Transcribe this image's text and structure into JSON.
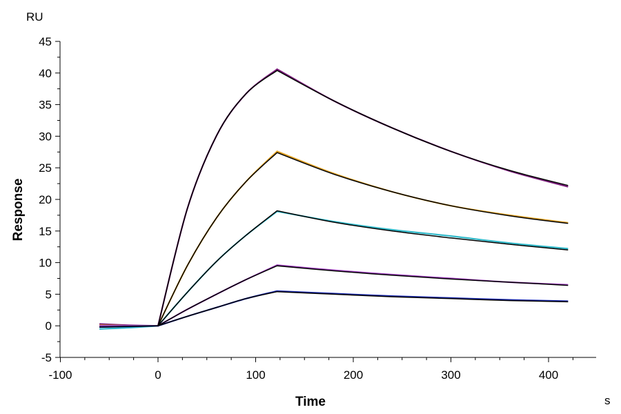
{
  "chart_data": {
    "type": "line",
    "xlabel": "Time",
    "ylabel": "Response",
    "x_unit": "s",
    "y_unit": "RU",
    "xlim": [
      -100,
      450
    ],
    "ylim": [
      -5,
      45
    ],
    "x_ticks": [
      -100,
      0,
      100,
      200,
      300,
      400
    ],
    "y_ticks": [
      -5,
      0,
      5,
      10,
      15,
      20,
      25,
      30,
      35,
      40,
      45
    ],
    "grid": false,
    "series": [
      {
        "color": "#7a1a7a",
        "x": [
          -60,
          -30,
          0,
          30,
          60,
          90,
          122,
          180,
          240,
          300,
          360,
          420
        ],
        "y": [
          0.3,
          0.1,
          0,
          18.5,
          30.1,
          36.7,
          40.6,
          35.6,
          31.3,
          27.6,
          24.5,
          22.0
        ]
      },
      {
        "color": "#e0a020",
        "x": [
          -60,
          -30,
          0,
          30,
          60,
          90,
          122,
          180,
          240,
          300,
          360,
          420
        ],
        "y": [
          0.1,
          0,
          0,
          9.5,
          17.1,
          22.8,
          27.6,
          24.1,
          21.2,
          19.0,
          17.5,
          16.3
        ]
      },
      {
        "color": "#30b8c8",
        "x": [
          -60,
          -30,
          0,
          30,
          60,
          90,
          122,
          180,
          240,
          300,
          360,
          420
        ],
        "y": [
          -0.5,
          -0.3,
          0,
          5.3,
          10.2,
          14.3,
          18.1,
          16.5,
          15.2,
          14.2,
          13.1,
          12.2
        ]
      },
      {
        "color": "#a040c0",
        "x": [
          -60,
          -30,
          0,
          30,
          60,
          90,
          122,
          180,
          240,
          300,
          360,
          420
        ],
        "y": [
          0,
          0,
          0,
          2.6,
          5.0,
          7.3,
          9.6,
          8.8,
          8.1,
          7.5,
          6.9,
          6.5
        ]
      },
      {
        "color": "#1a2ab0",
        "x": [
          -60,
          -30,
          0,
          30,
          60,
          90,
          122,
          180,
          240,
          300,
          360,
          420
        ],
        "y": [
          -0.2,
          -0.1,
          0,
          1.5,
          2.9,
          4.3,
          5.5,
          5.1,
          4.7,
          4.4,
          4.1,
          3.9
        ]
      }
    ],
    "fits": [
      {
        "color": "#000000",
        "x": [
          0,
          30,
          60,
          90,
          122,
          180,
          240,
          300,
          360,
          420
        ],
        "y": [
          0,
          18.5,
          30.1,
          36.7,
          40.4,
          35.6,
          31.3,
          27.6,
          24.6,
          22.2
        ]
      },
      {
        "color": "#000000",
        "x": [
          0,
          30,
          60,
          90,
          122,
          180,
          240,
          300,
          360,
          420
        ],
        "y": [
          0,
          9.5,
          17.1,
          22.8,
          27.4,
          24.0,
          21.2,
          19.0,
          17.4,
          16.2
        ]
      },
      {
        "color": "#000000",
        "x": [
          0,
          30,
          60,
          90,
          122,
          180,
          240,
          300,
          360,
          420
        ],
        "y": [
          0,
          5.3,
          10.2,
          14.3,
          18.2,
          16.4,
          15.0,
          13.9,
          12.9,
          12.0
        ]
      },
      {
        "color": "#000000",
        "x": [
          0,
          30,
          60,
          90,
          122,
          180,
          240,
          300,
          360,
          420
        ],
        "y": [
          0,
          2.6,
          5.0,
          7.3,
          9.5,
          8.7,
          8.0,
          7.4,
          6.9,
          6.4
        ]
      },
      {
        "color": "#000000",
        "x": [
          0,
          30,
          60,
          90,
          122,
          180,
          240,
          300,
          360,
          420
        ],
        "y": [
          0,
          1.5,
          2.9,
          4.3,
          5.4,
          5.0,
          4.6,
          4.3,
          4.0,
          3.8
        ]
      }
    ],
    "baseline": {
      "color": "#000000",
      "x": [
        -60,
        0
      ],
      "y": [
        -0.2,
        0
      ]
    }
  }
}
